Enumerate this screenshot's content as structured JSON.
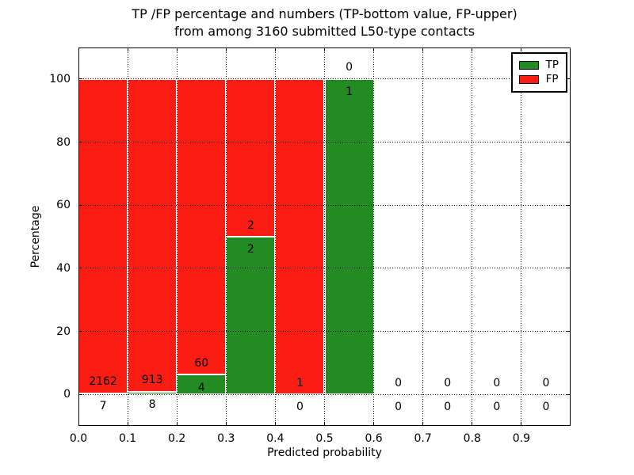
{
  "title": {
    "line1": "TP /FP percentage and numbers (TP-bottom value, FP-upper)",
    "line2": "from among 3160 submitted L50-type contacts"
  },
  "axes": {
    "xlabel": "Predicted probability",
    "ylabel": "Percentage",
    "xtick_labels": [
      "0.0",
      "0.1",
      "0.2",
      "0.3",
      "0.4",
      "0.5",
      "0.6",
      "0.7",
      "0.8",
      "0.9"
    ],
    "xtick_values": [
      0.0,
      0.1,
      0.2,
      0.3,
      0.4,
      0.5,
      0.6,
      0.7,
      0.8,
      0.9
    ],
    "ytick_labels": [
      "0",
      "20",
      "40",
      "60",
      "80",
      "100"
    ],
    "ytick_values": [
      0,
      20,
      40,
      60,
      80,
      100
    ],
    "xlim": [
      0.0,
      1.0
    ],
    "ylim": [
      -10,
      110
    ],
    "grid_style": "dotted"
  },
  "legend": {
    "position": "upper-right",
    "entries": [
      {
        "label": "TP",
        "color": "#228b22"
      },
      {
        "label": "FP",
        "color": "#fb1c14"
      }
    ]
  },
  "colors": {
    "tp": "#228b22",
    "fp": "#fb1c14",
    "bar_edge": "#ffffff",
    "grid": "#000000",
    "background": "#ffffff"
  },
  "chart_data": {
    "type": "bar",
    "stacked": true,
    "normalized_to_percent": true,
    "title": "TP /FP percentage and numbers (TP-bottom value, FP-upper) from among 3160 submitted L50-type contacts",
    "xlabel": "Predicted probability",
    "ylabel": "Percentage",
    "total_contacts": 3160,
    "bin_width": 0.1,
    "bin_starts": [
      0.0,
      0.1,
      0.2,
      0.3,
      0.4,
      0.5,
      0.6,
      0.7,
      0.8,
      0.9
    ],
    "series": [
      {
        "name": "TP",
        "color": "#228b22",
        "counts": [
          7,
          8,
          4,
          2,
          0,
          1,
          0,
          0,
          0,
          0
        ]
      },
      {
        "name": "FP",
        "color": "#fb1c14",
        "counts": [
          2162,
          913,
          60,
          2,
          1,
          0,
          0,
          0,
          0,
          0
        ]
      }
    ],
    "tp_percent_per_bin": [
      0.32,
      0.87,
      6.25,
      50.0,
      0.0,
      100.0,
      null,
      null,
      null,
      null
    ],
    "annotation_rule": "FP count printed above TP segment top, TP count printed below TP segment top",
    "xlim": [
      0.0,
      1.0
    ],
    "ylim": [
      -10,
      110
    ],
    "legend_position": "upper-right",
    "grid": true
  }
}
